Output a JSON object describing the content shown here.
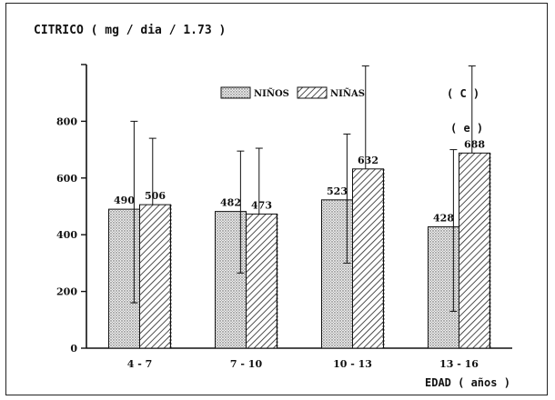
{
  "chart_data": {
    "type": "bar",
    "title": "CITRICO ( mg / dia / 1.73 )",
    "xlabel": "EDAD ( años )",
    "ylabel": "",
    "categories": [
      "4 - 7",
      "7 - 10",
      "10 - 13",
      "13 - 16"
    ],
    "series": [
      {
        "name": "NIÑOS",
        "values": [
          490,
          482,
          523,
          428
        ],
        "error_upper": [
          800,
          695,
          755,
          700
        ],
        "error_lower": [
          160,
          265,
          300,
          130
        ],
        "labels": [
          "490",
          "482",
          "523",
          "428"
        ]
      },
      {
        "name": "NIÑAS",
        "values": [
          506,
          473,
          632,
          688
        ],
        "error_upper": [
          740,
          705,
          995,
          995
        ],
        "error_lower": [
          null,
          null,
          null,
          null
        ],
        "labels": [
          "506",
          "473",
          "632",
          "688"
        ]
      }
    ],
    "ylim": [
      0,
      1000
    ],
    "yticks": [
      0,
      200,
      400,
      600,
      800
    ],
    "legend_position": "top-center",
    "annotations": [
      "( C )",
      "( e )"
    ],
    "grid": false,
    "colors": {
      "ninos_fill": "#d4d4d4",
      "ninas_fill": "#ffffff",
      "ink": "#111111"
    }
  }
}
